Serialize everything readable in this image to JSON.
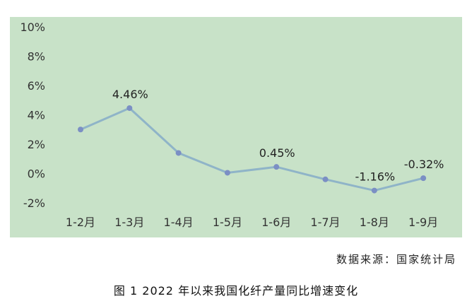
{
  "chart_data": {
    "type": "line",
    "title": "",
    "xlabel": "",
    "ylabel": "",
    "categories": [
      "1-2月",
      "1-3月",
      "1-4月",
      "1-5月",
      "1-6月",
      "1-7月",
      "1-8月",
      "1-9月"
    ],
    "series": [
      {
        "values": [
          3.0,
          4.46,
          1.4,
          0.05,
          0.45,
          -0.4,
          -1.16,
          -0.32
        ]
      }
    ],
    "data_labels": [
      {
        "index": 1,
        "text": "4.46%"
      },
      {
        "index": 4,
        "text": "0.45%"
      },
      {
        "index": 6,
        "text": "-1.16%"
      },
      {
        "index": 7,
        "text": "-0.32%"
      }
    ],
    "y_ticks": [
      -2,
      0,
      2,
      4,
      6,
      8,
      10
    ],
    "y_tick_labels": [
      "-2%",
      "0%",
      "2%",
      "4%",
      "6%",
      "8%",
      "10%"
    ],
    "ylim": [
      -2,
      10
    ],
    "grid": false,
    "legend": "none",
    "colors": {
      "background": "#c8e2c8",
      "line": "#8fb4c8",
      "marker": "#7b8fc4"
    }
  },
  "source_note": "数据来源：国家统计局",
  "caption": "图 1  2022 年以来我国化纤产量同比增速变化"
}
